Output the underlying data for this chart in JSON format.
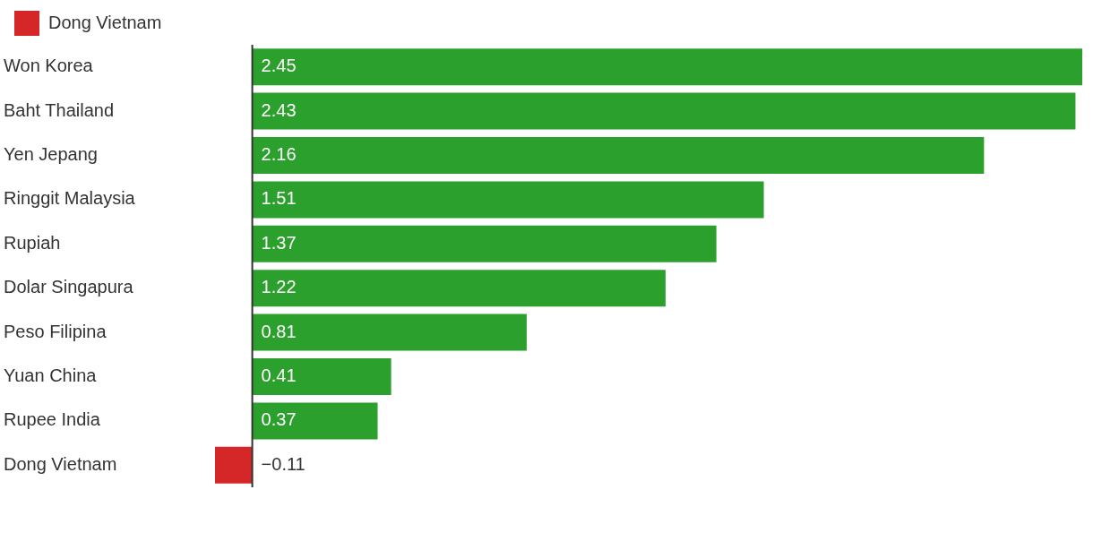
{
  "chart_data": {
    "type": "bar",
    "orientation": "horizontal",
    "stacked": true,
    "categories": [
      "Won Korea",
      "Baht Thailand",
      "Yen Jepang",
      "Ringgit Malaysia",
      "Rupiah",
      "Dolar Singapura",
      "Peso Filipina",
      "Yuan China",
      "Rupee India",
      "Dong Vietnam"
    ],
    "series": [
      {
        "color": "#2ca02c",
        "values": [
          2.45,
          2.43,
          2.16,
          1.51,
          1.37,
          1.22,
          0.81,
          0.41,
          0.37,
          null
        ]
      },
      {
        "name": "Dong Vietnam",
        "color": "#d62728",
        "values": [
          null,
          null,
          null,
          null,
          null,
          null,
          null,
          null,
          null,
          -0.11
        ]
      }
    ],
    "data_labels": true,
    "legend": "top left"
  }
}
